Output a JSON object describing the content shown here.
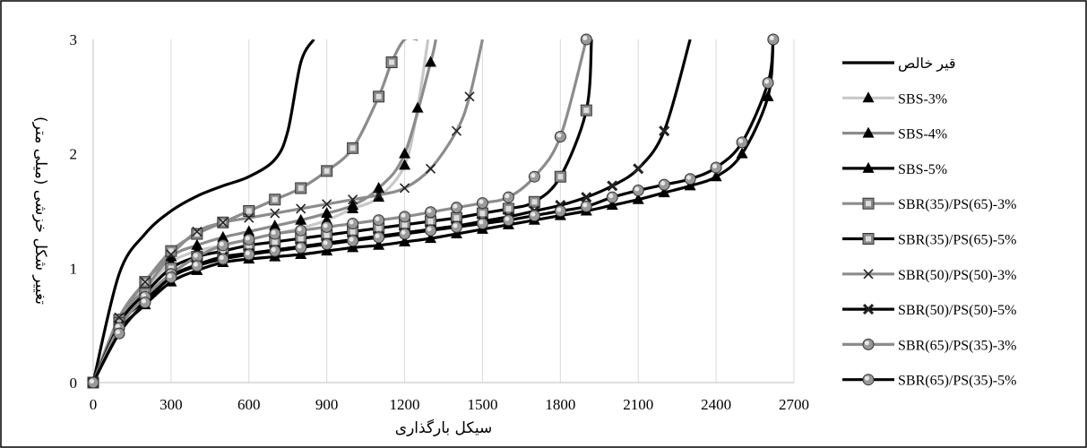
{
  "chart_data": {
    "type": "line",
    "xlabel": "سیکل بارگذاری",
    "ylabel": "تغییر شکل خزشی (میلی متر)",
    "xlim": [
      0,
      2700
    ],
    "ylim": [
      0,
      3
    ],
    "xticks": [
      "0",
      "300",
      "600",
      "900",
      "1200",
      "1500",
      "1800",
      "2100",
      "2400",
      "2700"
    ],
    "yticks": [
      "0",
      "1",
      "2",
      "3"
    ],
    "grid": "vertical",
    "legend_position": "right",
    "series": [
      {
        "name": "قیر خالص",
        "color": "#000000",
        "marker": "none",
        "x": [
          0,
          100,
          200,
          300,
          400,
          500,
          600,
          700,
          750,
          800,
          850
        ],
        "y": [
          0,
          0.95,
          1.3,
          1.5,
          1.63,
          1.72,
          1.8,
          1.95,
          2.2,
          2.8,
          3.0
        ]
      },
      {
        "name": "SBS-3%",
        "color": "#c8c8c8",
        "marker": "triangle",
        "x": [
          0,
          100,
          200,
          300,
          400,
          500,
          600,
          700,
          800,
          900,
          1000,
          1100,
          1200,
          1250,
          1290
        ],
        "y": [
          0,
          0.5,
          0.8,
          1.05,
          1.15,
          1.2,
          1.25,
          1.3,
          1.35,
          1.42,
          1.52,
          1.62,
          1.9,
          2.4,
          3.0
        ]
      },
      {
        "name": "SBS-4%",
        "color": "#8c8c8c",
        "marker": "triangle",
        "x": [
          0,
          100,
          200,
          300,
          400,
          500,
          600,
          700,
          800,
          900,
          1000,
          1100,
          1200,
          1300,
          1320
        ],
        "y": [
          0,
          0.55,
          0.82,
          1.1,
          1.2,
          1.27,
          1.32,
          1.37,
          1.42,
          1.48,
          1.55,
          1.7,
          2.0,
          2.8,
          3.0
        ]
      },
      {
        "name": "SBS-5%",
        "color": "#000000",
        "marker": "triangle",
        "x": [
          0,
          100,
          200,
          300,
          400,
          500,
          600,
          700,
          800,
          900,
          1000,
          1100,
          1200,
          1300,
          1400,
          1500,
          1600,
          1700,
          1800,
          1900,
          2000,
          2100,
          2200,
          2300,
          2400,
          2500,
          2600,
          2620
        ],
        "y": [
          0,
          0.45,
          0.68,
          0.88,
          0.98,
          1.05,
          1.08,
          1.1,
          1.12,
          1.15,
          1.18,
          1.2,
          1.23,
          1.26,
          1.3,
          1.34,
          1.38,
          1.42,
          1.46,
          1.5,
          1.55,
          1.6,
          1.66,
          1.72,
          1.8,
          2.0,
          2.5,
          3.0
        ]
      },
      {
        "name": "SBR(35)/PS(65)-3%",
        "color": "#8c8c8c",
        "marker": "square",
        "x": [
          0,
          100,
          200,
          300,
          400,
          500,
          600,
          700,
          800,
          900,
          1000,
          1100,
          1150,
          1200,
          1250
        ],
        "y": [
          0,
          0.55,
          0.88,
          1.15,
          1.3,
          1.4,
          1.5,
          1.6,
          1.7,
          1.85,
          2.05,
          2.5,
          2.8,
          3.0,
          3.0
        ]
      },
      {
        "name": "SBR(35)/PS(65)-5%",
        "color": "#000000",
        "marker": "square",
        "x": [
          0,
          100,
          200,
          300,
          400,
          500,
          600,
          700,
          800,
          900,
          1000,
          1100,
          1200,
          1300,
          1400,
          1500,
          1600,
          1700,
          1800,
          1900,
          1920
        ],
        "y": [
          0,
          0.52,
          0.78,
          1.0,
          1.1,
          1.15,
          1.2,
          1.23,
          1.26,
          1.29,
          1.32,
          1.35,
          1.38,
          1.41,
          1.44,
          1.48,
          1.52,
          1.58,
          1.8,
          2.38,
          3.0
        ]
      },
      {
        "name": "SBR(50)/PS(50)-3%",
        "color": "#8c8c8c",
        "marker": "x",
        "x": [
          0,
          100,
          200,
          300,
          400,
          500,
          600,
          700,
          800,
          900,
          1000,
          1100,
          1200,
          1300,
          1400,
          1450,
          1500
        ],
        "y": [
          0,
          0.57,
          0.88,
          1.12,
          1.32,
          1.4,
          1.44,
          1.48,
          1.52,
          1.56,
          1.6,
          1.64,
          1.7,
          1.87,
          2.2,
          2.5,
          3.0
        ]
      },
      {
        "name": "SBR(50)/PS(50)-5%",
        "color": "#000000",
        "marker": "x",
        "x": [
          0,
          100,
          200,
          300,
          400,
          500,
          600,
          700,
          800,
          900,
          1000,
          1100,
          1200,
          1300,
          1400,
          1500,
          1600,
          1700,
          1800,
          1900,
          2000,
          2100,
          2200,
          2300
        ],
        "y": [
          0,
          0.5,
          0.72,
          0.93,
          1.03,
          1.1,
          1.13,
          1.16,
          1.19,
          1.22,
          1.25,
          1.28,
          1.31,
          1.34,
          1.37,
          1.41,
          1.45,
          1.5,
          1.55,
          1.62,
          1.72,
          1.87,
          2.2,
          3.0
        ]
      },
      {
        "name": "SBR(65)/PS(35)-3%",
        "color": "#8c8c8c",
        "marker": "circle",
        "x": [
          0,
          100,
          200,
          300,
          400,
          500,
          600,
          700,
          800,
          900,
          1000,
          1100,
          1200,
          1300,
          1400,
          1500,
          1600,
          1700,
          1800,
          1900
        ],
        "y": [
          0,
          0.48,
          0.75,
          0.95,
          1.1,
          1.2,
          1.25,
          1.3,
          1.33,
          1.36,
          1.39,
          1.42,
          1.45,
          1.49,
          1.53,
          1.57,
          1.62,
          1.8,
          2.15,
          3.0
        ]
      },
      {
        "name": "SBR(65)/PS(35)-5%",
        "color": "#000000",
        "marker": "circle",
        "x": [
          0,
          100,
          200,
          300,
          400,
          500,
          600,
          700,
          800,
          900,
          1000,
          1100,
          1200,
          1300,
          1400,
          1500,
          1600,
          1700,
          1800,
          1900,
          2000,
          2100,
          2200,
          2300,
          2400,
          2500,
          2600,
          2620
        ],
        "y": [
          0,
          0.43,
          0.7,
          0.92,
          1.02,
          1.08,
          1.12,
          1.15,
          1.18,
          1.21,
          1.24,
          1.27,
          1.3,
          1.33,
          1.36,
          1.39,
          1.42,
          1.46,
          1.5,
          1.54,
          1.62,
          1.68,
          1.73,
          1.78,
          1.88,
          2.1,
          2.62,
          3.0
        ]
      }
    ]
  }
}
